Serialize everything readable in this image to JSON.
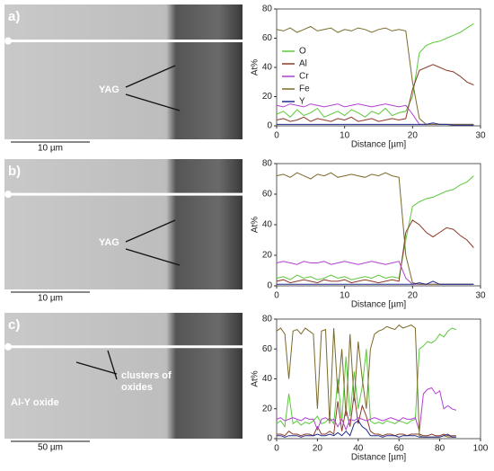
{
  "panels": [
    {
      "label": "a)",
      "annotations": [
        "YAG"
      ],
      "scale": "10 µm"
    },
    {
      "label": "b)",
      "annotations": [
        "YAG"
      ],
      "scale": "10 µm"
    },
    {
      "label": "c)",
      "annotations": [
        "clusters of",
        "oxides",
        "Al-Y oxide"
      ],
      "scale": "50 µm"
    }
  ],
  "chart_data": [
    {
      "type": "line",
      "ylabel": "At%",
      "xlabel": "Distance [µm]",
      "xlim": [
        0,
        30
      ],
      "xticks": [
        0,
        10,
        20,
        30
      ],
      "ylim": [
        0,
        80
      ],
      "yticks": [
        0,
        20,
        40,
        60,
        80
      ],
      "legend": "upper left",
      "x": [
        0,
        1,
        2,
        3,
        4,
        5,
        6,
        7,
        8,
        9,
        10,
        11,
        12,
        13,
        14,
        15,
        16,
        17,
        18,
        19,
        20,
        21,
        22,
        23,
        24,
        25,
        26,
        27,
        28,
        29
      ],
      "series": [
        {
          "name": "O",
          "color": "#5cc83c",
          "values": [
            8,
            10,
            6,
            11,
            7,
            9,
            12,
            6,
            8,
            10,
            7,
            11,
            9,
            6,
            10,
            8,
            12,
            7,
            9,
            10,
            20,
            50,
            55,
            57,
            58,
            60,
            62,
            64,
            67,
            70
          ]
        },
        {
          "name": "Al",
          "color": "#8b3a2a",
          "values": [
            4,
            5,
            3,
            4,
            6,
            3,
            5,
            4,
            3,
            5,
            4,
            6,
            3,
            4,
            5,
            3,
            4,
            5,
            4,
            5,
            25,
            38,
            40,
            42,
            40,
            38,
            37,
            34,
            30,
            28
          ]
        },
        {
          "name": "Cr",
          "color": "#b040d0",
          "values": [
            14,
            13,
            15,
            14,
            13,
            15,
            14,
            13,
            14,
            15,
            13,
            14,
            15,
            14,
            13,
            14,
            15,
            14,
            13,
            14,
            8,
            1,
            1,
            1,
            1,
            1,
            1,
            1,
            1,
            1
          ]
        },
        {
          "name": "Fe",
          "color": "#7a6a2a",
          "values": [
            66,
            65,
            67,
            64,
            66,
            68,
            65,
            66,
            67,
            64,
            66,
            65,
            67,
            66,
            64,
            66,
            67,
            65,
            66,
            65,
            30,
            5,
            1,
            1,
            1,
            1,
            1,
            1,
            1,
            1
          ]
        },
        {
          "name": "Y",
          "color": "#1f2a8a",
          "values": [
            1,
            1,
            1,
            1,
            1,
            1,
            1,
            1,
            1,
            1,
            1,
            1,
            1,
            1,
            1,
            1,
            1,
            1,
            1,
            1,
            1,
            1,
            1,
            2,
            1,
            1,
            0.5,
            0.5,
            0.5,
            0.5
          ]
        }
      ]
    },
    {
      "type": "line",
      "ylabel": "At%",
      "xlabel": "Distance [µm]",
      "xlim": [
        0,
        30
      ],
      "xticks": [
        0,
        10,
        20,
        30
      ],
      "ylim": [
        0,
        80
      ],
      "yticks": [
        0,
        20,
        40,
        60,
        80
      ],
      "legend": false,
      "x": [
        0,
        1,
        2,
        3,
        4,
        5,
        6,
        7,
        8,
        9,
        10,
        11,
        12,
        13,
        14,
        15,
        16,
        17,
        18,
        19,
        20,
        21,
        22,
        23,
        24,
        25,
        26,
        27,
        28,
        29
      ],
      "series": [
        {
          "name": "O",
          "color": "#5cc83c",
          "values": [
            5,
            6,
            4,
            7,
            5,
            6,
            4,
            5,
            7,
            5,
            6,
            4,
            5,
            6,
            5,
            7,
            5,
            6,
            5,
            30,
            52,
            55,
            57,
            58,
            60,
            62,
            63,
            66,
            68,
            72
          ]
        },
        {
          "name": "Al",
          "color": "#8b3a2a",
          "values": [
            3,
            4,
            2,
            3,
            4,
            3,
            2,
            4,
            3,
            3,
            4,
            2,
            3,
            4,
            3,
            2,
            3,
            4,
            3,
            35,
            43,
            40,
            35,
            32,
            35,
            38,
            37,
            33,
            30,
            25
          ]
        },
        {
          "name": "Cr",
          "color": "#b040d0",
          "values": [
            15,
            16,
            15,
            14,
            16,
            15,
            15,
            16,
            14,
            15,
            16,
            15,
            14,
            15,
            16,
            15,
            14,
            15,
            16,
            5,
            1,
            1,
            1,
            1,
            1,
            1,
            1,
            1,
            1,
            1
          ]
        },
        {
          "name": "Fe",
          "color": "#7a6a2a",
          "values": [
            72,
            73,
            71,
            74,
            72,
            70,
            73,
            72,
            74,
            71,
            72,
            73,
            72,
            71,
            73,
            72,
            74,
            72,
            71,
            20,
            2,
            1,
            1,
            1,
            1,
            1,
            1,
            1,
            1,
            1
          ]
        },
        {
          "name": "Y",
          "color": "#1f2a8a",
          "values": [
            1,
            1,
            1,
            1,
            1,
            1,
            1,
            1,
            1,
            1,
            1,
            1,
            1,
            1,
            1,
            1,
            1,
            1,
            1,
            1,
            1,
            2,
            1,
            3,
            1,
            1,
            1,
            1,
            1,
            1
          ]
        }
      ]
    },
    {
      "type": "line",
      "ylabel": "At%",
      "xlabel": "Distance [µm]",
      "xlim": [
        0,
        100
      ],
      "xticks": [
        0,
        20,
        40,
        60,
        80,
        100
      ],
      "ylim": [
        0,
        80
      ],
      "yticks": [
        0,
        20,
        40,
        60,
        80
      ],
      "legend": false,
      "x": [
        0,
        2,
        4,
        6,
        8,
        10,
        12,
        14,
        16,
        18,
        20,
        22,
        24,
        26,
        28,
        30,
        32,
        34,
        36,
        38,
        40,
        42,
        44,
        46,
        48,
        50,
        52,
        54,
        56,
        58,
        60,
        62,
        64,
        66,
        68,
        70,
        72,
        74,
        76,
        78,
        80,
        82,
        84,
        86,
        88
      ],
      "series": [
        {
          "name": "O",
          "color": "#5cc83c",
          "values": [
            10,
            12,
            8,
            30,
            10,
            12,
            9,
            11,
            10,
            12,
            15,
            10,
            11,
            14,
            10,
            40,
            12,
            55,
            15,
            45,
            20,
            35,
            60,
            12,
            10,
            11,
            10,
            12,
            11,
            10,
            12,
            11,
            10,
            12,
            13,
            60,
            62,
            65,
            64,
            66,
            70,
            68,
            72,
            74,
            73
          ]
        },
        {
          "name": "Al",
          "color": "#8b3a2a",
          "values": [
            3,
            3,
            2,
            5,
            3,
            3,
            2,
            3,
            3,
            2,
            8,
            3,
            3,
            5,
            3,
            25,
            5,
            20,
            8,
            30,
            10,
            22,
            15,
            5,
            3,
            3,
            2,
            3,
            3,
            2,
            3,
            3,
            2,
            3,
            3,
            3,
            2,
            2,
            3,
            2,
            2,
            3,
            2,
            2,
            2
          ]
        },
        {
          "name": "Cr",
          "color": "#b040d0",
          "values": [
            13,
            14,
            12,
            13,
            14,
            13,
            12,
            14,
            13,
            13,
            6,
            13,
            14,
            12,
            13,
            8,
            13,
            6,
            13,
            12,
            14,
            13,
            12,
            13,
            14,
            13,
            12,
            13,
            14,
            13,
            12,
            14,
            13,
            13,
            14,
            5,
            30,
            33,
            34,
            30,
            32,
            20,
            22,
            20,
            19
          ]
        },
        {
          "name": "Fe",
          "color": "#7a6a2a",
          "values": [
            72,
            74,
            70,
            40,
            72,
            73,
            70,
            74,
            72,
            70,
            20,
            72,
            73,
            10,
            74,
            30,
            60,
            15,
            70,
            25,
            65,
            40,
            20,
            60,
            70,
            72,
            73,
            75,
            74,
            73,
            76,
            74,
            75,
            76,
            74,
            2,
            1,
            1,
            1,
            1,
            1,
            2,
            1,
            1,
            1
          ]
        },
        {
          "name": "Y",
          "color": "#1f2a8a",
          "values": [
            2,
            2,
            1,
            2,
            2,
            2,
            1,
            2,
            2,
            2,
            3,
            2,
            2,
            3,
            2,
            4,
            2,
            5,
            2,
            10,
            12,
            8,
            6,
            2,
            2,
            2,
            1,
            2,
            2,
            2,
            1,
            2,
            2,
            2,
            2,
            1,
            1,
            1,
            1,
            1,
            1,
            2,
            3,
            1,
            1
          ]
        }
      ]
    }
  ]
}
